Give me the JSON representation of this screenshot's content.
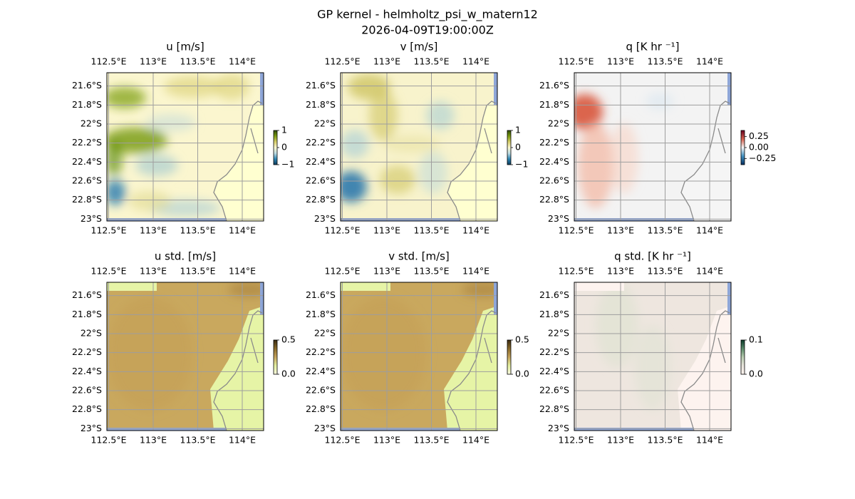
{
  "figure": {
    "title": "GP kernel - helmholtz_psi_w_matern12",
    "subtitle": "2026-04-09T19:00:00Z"
  },
  "chart_data": [
    {
      "type": "map",
      "title": "u [m/s]",
      "xlim": [
        112.48,
        114.24
      ],
      "ylim": [
        -23.02,
        -21.46
      ],
      "grid": true,
      "xticks": [
        {
          "value": 112.5,
          "label": "112.5°E"
        },
        {
          "value": 113,
          "label": "113°E"
        },
        {
          "value": 113.5,
          "label": "113.5°E"
        },
        {
          "value": 114,
          "label": "114°E"
        }
      ],
      "yticks": [
        {
          "value": -21.6,
          "label": "21.6°S"
        },
        {
          "value": -21.8,
          "label": "21.8°S"
        },
        {
          "value": -22,
          "label": "22°S"
        },
        {
          "value": -22.2,
          "label": "22.2°S"
        },
        {
          "value": -22.4,
          "label": "22.4°S"
        },
        {
          "value": -22.6,
          "label": "22.6°S"
        },
        {
          "value": -22.8,
          "label": "22.8°S"
        },
        {
          "value": -23,
          "label": "23°S"
        }
      ],
      "colorbar": {
        "lim": [
          -1,
          1
        ],
        "ticks": [
          1,
          0,
          {
            "value": -1,
            "label": "−1"
          }
        ],
        "colormap": [
          "#0c3c5c",
          "#2e86b4",
          "#bfdde4",
          "#fbf8d0",
          "#d8ce6a",
          "#7c9c10",
          "#2d4a06"
        ]
      }
    },
    {
      "type": "map",
      "title": "v [m/s]",
      "xlim": [
        112.48,
        114.24
      ],
      "ylim": [
        -23.02,
        -21.46
      ],
      "grid": true,
      "xticks": [
        {
          "value": 112.5,
          "label": "112.5°E"
        },
        {
          "value": 113,
          "label": "113°E"
        },
        {
          "value": 113.5,
          "label": "113.5°E"
        },
        {
          "value": 114,
          "label": "114°E"
        }
      ],
      "yticks": [
        {
          "value": -21.6,
          "label": "21.6°S"
        },
        {
          "value": -21.8,
          "label": "21.8°S"
        },
        {
          "value": -22,
          "label": "22°S"
        },
        {
          "value": -22.2,
          "label": "22.2°S"
        },
        {
          "value": -22.4,
          "label": "22.4°S"
        },
        {
          "value": -22.6,
          "label": "22.6°S"
        },
        {
          "value": -22.8,
          "label": "22.8°S"
        },
        {
          "value": -23,
          "label": "23°S"
        }
      ],
      "colorbar": {
        "lim": [
          -1,
          1
        ],
        "ticks": [
          1,
          0,
          {
            "value": -1,
            "label": "−1"
          }
        ],
        "colormap": [
          "#0c3c5c",
          "#2e86b4",
          "#bfdde4",
          "#fbf8d0",
          "#d8ce6a",
          "#7c9c10",
          "#2d4a06"
        ]
      }
    },
    {
      "type": "map",
      "title": "q [K hr ⁻¹]",
      "xlim": [
        112.48,
        114.24
      ],
      "ylim": [
        -23.02,
        -21.46
      ],
      "grid": true,
      "xticks": [
        {
          "value": 112.5,
          "label": "112.5°E"
        },
        {
          "value": 113,
          "label": "113°E"
        },
        {
          "value": 113.5,
          "label": "113.5°E"
        },
        {
          "value": 114,
          "label": "114°E"
        }
      ],
      "yticks": [
        {
          "value": -21.6,
          "label": "21.6°S"
        },
        {
          "value": -21.8,
          "label": "21.8°S"
        },
        {
          "value": -22,
          "label": "22°S"
        },
        {
          "value": -22.2,
          "label": "22.2°S"
        },
        {
          "value": -22.4,
          "label": "22.4°S"
        },
        {
          "value": -22.6,
          "label": "22.6°S"
        },
        {
          "value": -22.8,
          "label": "22.8°S"
        },
        {
          "value": -23,
          "label": "23°S"
        }
      ],
      "colorbar": {
        "lim": [
          -0.39,
          0.39
        ],
        "ticks": [
          0.25,
          {
            "value": 0,
            "label": "0.00"
          },
          {
            "value": -0.25,
            "label": "−0.25"
          }
        ],
        "colormap": [
          "#053061",
          "#4393c3",
          "#f7f7f7",
          "#d6604d",
          "#67001f"
        ]
      }
    },
    {
      "type": "map",
      "title": "u std. [m/s]",
      "xlim": [
        112.48,
        114.24
      ],
      "ylim": [
        -23.02,
        -21.46
      ],
      "grid": true,
      "xticks": [
        {
          "value": 112.5,
          "label": "112.5°E"
        },
        {
          "value": 113,
          "label": "113°E"
        },
        {
          "value": 113.5,
          "label": "113.5°E"
        },
        {
          "value": 114,
          "label": "114°E"
        }
      ],
      "yticks": [
        {
          "value": -21.6,
          "label": "21.6°S"
        },
        {
          "value": -21.8,
          "label": "21.8°S"
        },
        {
          "value": -22,
          "label": "22°S"
        },
        {
          "value": -22.2,
          "label": "22.2°S"
        },
        {
          "value": -22.4,
          "label": "22.4°S"
        },
        {
          "value": -22.6,
          "label": "22.6°S"
        },
        {
          "value": -22.8,
          "label": "22.8°S"
        },
        {
          "value": -23,
          "label": "23°S"
        }
      ],
      "colorbar": {
        "lim": [
          0,
          0.5
        ],
        "ticks": [
          0.5,
          {
            "value": 0,
            "label": "0.0"
          }
        ],
        "colormap": [
          "#fbfbe0",
          "#e4f0a0",
          "#c6a45c",
          "#8a6a2a",
          "#3a2a10"
        ]
      }
    },
    {
      "type": "map",
      "title": "v std. [m/s]",
      "xlim": [
        112.48,
        114.24
      ],
      "ylim": [
        -23.02,
        -21.46
      ],
      "grid": true,
      "xticks": [
        {
          "value": 112.5,
          "label": "112.5°E"
        },
        {
          "value": 113,
          "label": "113°E"
        },
        {
          "value": 113.5,
          "label": "113.5°E"
        },
        {
          "value": 114,
          "label": "114°E"
        }
      ],
      "yticks": [
        {
          "value": -21.6,
          "label": "21.6°S"
        },
        {
          "value": -21.8,
          "label": "21.8°S"
        },
        {
          "value": -22,
          "label": "22°S"
        },
        {
          "value": -22.2,
          "label": "22.2°S"
        },
        {
          "value": -22.4,
          "label": "22.4°S"
        },
        {
          "value": -22.6,
          "label": "22.6°S"
        },
        {
          "value": -22.8,
          "label": "22.8°S"
        },
        {
          "value": -23,
          "label": "23°S"
        }
      ],
      "colorbar": {
        "lim": [
          0,
          0.5
        ],
        "ticks": [
          0.5,
          {
            "value": 0,
            "label": "0.0"
          }
        ],
        "colormap": [
          "#fbfbe0",
          "#e4f0a0",
          "#c6a45c",
          "#8a6a2a",
          "#3a2a10"
        ]
      }
    },
    {
      "type": "map",
      "title": "q std. [K hr ⁻¹]",
      "xlim": [
        112.48,
        114.24
      ],
      "ylim": [
        -23.02,
        -21.46
      ],
      "grid": true,
      "xticks": [
        {
          "value": 112.5,
          "label": "112.5°E"
        },
        {
          "value": 113,
          "label": "113°E"
        },
        {
          "value": 113.5,
          "label": "113.5°E"
        },
        {
          "value": 114,
          "label": "114°E"
        }
      ],
      "yticks": [
        {
          "value": -21.6,
          "label": "21.6°S"
        },
        {
          "value": -21.8,
          "label": "21.8°S"
        },
        {
          "value": -22,
          "label": "22°S"
        },
        {
          "value": -22.2,
          "label": "22.2°S"
        },
        {
          "value": -22.4,
          "label": "22.4°S"
        },
        {
          "value": -22.6,
          "label": "22.6°S"
        },
        {
          "value": -22.8,
          "label": "22.8°S"
        },
        {
          "value": -23,
          "label": "23°S"
        }
      ],
      "colorbar": {
        "lim": [
          0,
          0.1
        ],
        "ticks": [
          0.1,
          {
            "value": 0,
            "label": "0.0"
          }
        ],
        "colormap": [
          "#fff5f0",
          "#e8e4dc",
          "#b8ccb0",
          "#5a8a6a",
          "#0a3a2a"
        ]
      }
    }
  ]
}
